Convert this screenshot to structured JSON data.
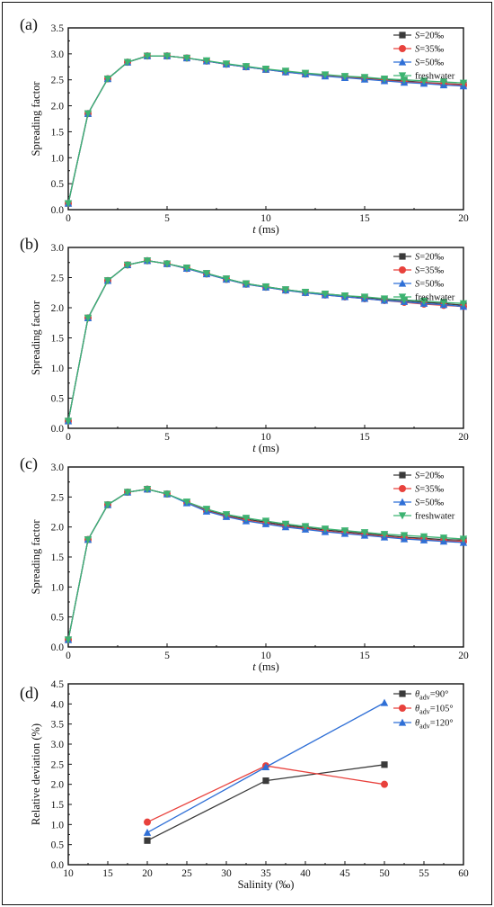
{
  "chart_data": [
    {
      "panel_label": "(a)",
      "type": "line",
      "xlabel_var": "t",
      "xlabel_unit": " (ms)",
      "ylabel": "Spreading factor",
      "xlim": [
        0,
        20
      ],
      "ylim": [
        0,
        3.5
      ],
      "xticks": [
        "0",
        "5",
        "10",
        "15",
        "20"
      ],
      "yticks": [
        "0.0",
        "0.5",
        "1.0",
        "1.5",
        "2.0",
        "2.5",
        "3.0",
        "3.5"
      ],
      "legend_position": "top-right",
      "x": [
        0,
        1,
        2,
        3,
        4,
        5,
        6,
        7,
        8,
        9,
        10,
        11,
        12,
        13,
        14,
        15,
        16,
        17,
        18,
        19,
        20
      ],
      "series": [
        {
          "name_var": "S",
          "name_rest": "=20‰",
          "color": "#3a3a3a",
          "marker": "square",
          "values": [
            0.12,
            1.85,
            2.52,
            2.84,
            2.96,
            2.96,
            2.92,
            2.86,
            2.8,
            2.75,
            2.7,
            2.66,
            2.62,
            2.59,
            2.56,
            2.53,
            2.5,
            2.48,
            2.45,
            2.43,
            2.41
          ]
        },
        {
          "name_var": "S",
          "name_rest": "=35‰",
          "color": "#e8413c",
          "marker": "circle",
          "values": [
            0.12,
            1.85,
            2.52,
            2.84,
            2.96,
            2.96,
            2.92,
            2.86,
            2.8,
            2.75,
            2.7,
            2.65,
            2.61,
            2.58,
            2.55,
            2.52,
            2.49,
            2.46,
            2.44,
            2.42,
            2.4
          ]
        },
        {
          "name_var": "S",
          "name_rest": "=50‰",
          "color": "#2f6fd6",
          "marker": "triangle-up",
          "values": [
            0.12,
            1.85,
            2.52,
            2.84,
            2.96,
            2.96,
            2.92,
            2.86,
            2.8,
            2.75,
            2.7,
            2.65,
            2.61,
            2.57,
            2.54,
            2.51,
            2.48,
            2.45,
            2.43,
            2.4,
            2.38
          ]
        },
        {
          "name_var": "",
          "name_rest": "freshwater",
          "color": "#3cb371",
          "marker": "triangle-down",
          "values": [
            0.12,
            1.85,
            2.52,
            2.84,
            2.96,
            2.96,
            2.92,
            2.87,
            2.81,
            2.76,
            2.71,
            2.67,
            2.63,
            2.6,
            2.57,
            2.55,
            2.52,
            2.5,
            2.48,
            2.46,
            2.44
          ]
        }
      ]
    },
    {
      "panel_label": "(b)",
      "type": "line",
      "xlabel_var": "t",
      "xlabel_unit": " (ms)",
      "ylabel": "Spreading factor",
      "xlim": [
        0,
        20
      ],
      "ylim": [
        0,
        3.0
      ],
      "xticks": [
        "0",
        "5",
        "10",
        "15",
        "20"
      ],
      "yticks": [
        "0.0",
        "0.5",
        "1.0",
        "1.5",
        "2.0",
        "2.5",
        "3.0"
      ],
      "legend_position": "top-right",
      "x": [
        0,
        1,
        2,
        3,
        4,
        5,
        6,
        7,
        8,
        9,
        10,
        11,
        12,
        13,
        14,
        15,
        16,
        17,
        18,
        19,
        20
      ],
      "series": [
        {
          "name_var": "S",
          "name_rest": "=20‰",
          "color": "#3a3a3a",
          "marker": "square",
          "values": [
            0.12,
            1.83,
            2.45,
            2.71,
            2.78,
            2.73,
            2.66,
            2.57,
            2.48,
            2.4,
            2.35,
            2.3,
            2.26,
            2.23,
            2.2,
            2.17,
            2.14,
            2.12,
            2.09,
            2.07,
            2.04
          ]
        },
        {
          "name_var": "S",
          "name_rest": "=35‰",
          "color": "#e8413c",
          "marker": "circle",
          "values": [
            0.12,
            1.83,
            2.45,
            2.71,
            2.78,
            2.73,
            2.65,
            2.56,
            2.47,
            2.39,
            2.34,
            2.29,
            2.25,
            2.21,
            2.18,
            2.15,
            2.12,
            2.09,
            2.06,
            2.04,
            2.02
          ]
        },
        {
          "name_var": "S",
          "name_rest": "=50‰",
          "color": "#2f6fd6",
          "marker": "triangle-up",
          "values": [
            0.12,
            1.83,
            2.45,
            2.71,
            2.78,
            2.73,
            2.65,
            2.56,
            2.47,
            2.39,
            2.34,
            2.29,
            2.25,
            2.21,
            2.18,
            2.15,
            2.12,
            2.1,
            2.07,
            2.05,
            2.02
          ]
        },
        {
          "name_var": "",
          "name_rest": "freshwater",
          "color": "#3cb371",
          "marker": "triangle-down",
          "values": [
            0.12,
            1.83,
            2.45,
            2.71,
            2.78,
            2.73,
            2.66,
            2.57,
            2.48,
            2.4,
            2.35,
            2.3,
            2.26,
            2.23,
            2.2,
            2.18,
            2.15,
            2.13,
            2.11,
            2.09,
            2.07
          ]
        }
      ]
    },
    {
      "panel_label": "(c)",
      "type": "line",
      "xlabel_var": "t",
      "xlabel_unit": " (ms)",
      "ylabel": "Spreading factor",
      "xlim": [
        0,
        20
      ],
      "ylim": [
        0,
        3.0
      ],
      "xticks": [
        "0",
        "5",
        "10",
        "15",
        "20"
      ],
      "yticks": [
        "0.0",
        "0.5",
        "1.0",
        "1.5",
        "2.0",
        "2.5",
        "3.0"
      ],
      "legend_position": "top-right",
      "x": [
        0,
        1,
        2,
        3,
        4,
        5,
        6,
        7,
        8,
        9,
        10,
        11,
        12,
        13,
        14,
        15,
        16,
        17,
        18,
        19,
        20
      ],
      "series": [
        {
          "name_var": "S",
          "name_rest": "=20‰",
          "color": "#3a3a3a",
          "marker": "square",
          "values": [
            0.12,
            1.79,
            2.37,
            2.58,
            2.63,
            2.55,
            2.41,
            2.28,
            2.19,
            2.13,
            2.08,
            2.03,
            1.99,
            1.95,
            1.92,
            1.89,
            1.86,
            1.83,
            1.81,
            1.79,
            1.78
          ]
        },
        {
          "name_var": "S",
          "name_rest": "=35‰",
          "color": "#e8413c",
          "marker": "circle",
          "values": [
            0.12,
            1.79,
            2.37,
            2.58,
            2.63,
            2.55,
            2.41,
            2.27,
            2.18,
            2.11,
            2.06,
            2.01,
            1.97,
            1.93,
            1.9,
            1.87,
            1.84,
            1.81,
            1.79,
            1.77,
            1.76
          ]
        },
        {
          "name_var": "S",
          "name_rest": "=50‰",
          "color": "#2f6fd6",
          "marker": "triangle-up",
          "values": [
            0.12,
            1.79,
            2.37,
            2.58,
            2.63,
            2.55,
            2.4,
            2.26,
            2.17,
            2.1,
            2.05,
            2.0,
            1.96,
            1.92,
            1.89,
            1.86,
            1.83,
            1.8,
            1.78,
            1.76,
            1.74
          ]
        },
        {
          "name_var": "",
          "name_rest": "freshwater",
          "color": "#3cb371",
          "marker": "triangle-down",
          "values": [
            0.12,
            1.79,
            2.37,
            2.58,
            2.63,
            2.55,
            2.42,
            2.3,
            2.21,
            2.15,
            2.1,
            2.05,
            2.01,
            1.97,
            1.94,
            1.91,
            1.88,
            1.86,
            1.84,
            1.82,
            1.8
          ]
        }
      ]
    },
    {
      "panel_label": "(d)",
      "type": "line",
      "xlabel_var": "",
      "xlabel_unit": "Salinity (‰)",
      "ylabel": "Relative deviation (%)",
      "xlim": [
        10,
        60
      ],
      "ylim": [
        0,
        4.5
      ],
      "xticks": [
        "10",
        "15",
        "20",
        "25",
        "30",
        "35",
        "40",
        "45",
        "50",
        "55",
        "60"
      ],
      "yticks": [
        "0.0",
        "0.5",
        "1.0",
        "1.5",
        "2.0",
        "2.5",
        "3.0",
        "3.5",
        "4.0",
        "4.5"
      ],
      "legend_position": "top-right",
      "x": [
        20,
        35,
        50
      ],
      "series": [
        {
          "name_var": "θ",
          "name_sub": "adv",
          "name_rest": "=90°",
          "color": "#3a3a3a",
          "marker": "square",
          "values": [
            0.6,
            2.09,
            2.49
          ]
        },
        {
          "name_var": "θ",
          "name_sub": "adv",
          "name_rest": "=105°",
          "color": "#e8413c",
          "marker": "circle",
          "values": [
            1.06,
            2.46,
            2.0
          ]
        },
        {
          "name_var": "θ",
          "name_sub": "adv",
          "name_rest": "=120°",
          "color": "#2f6fd6",
          "marker": "triangle-up",
          "values": [
            0.8,
            2.43,
            4.03
          ]
        }
      ]
    }
  ]
}
